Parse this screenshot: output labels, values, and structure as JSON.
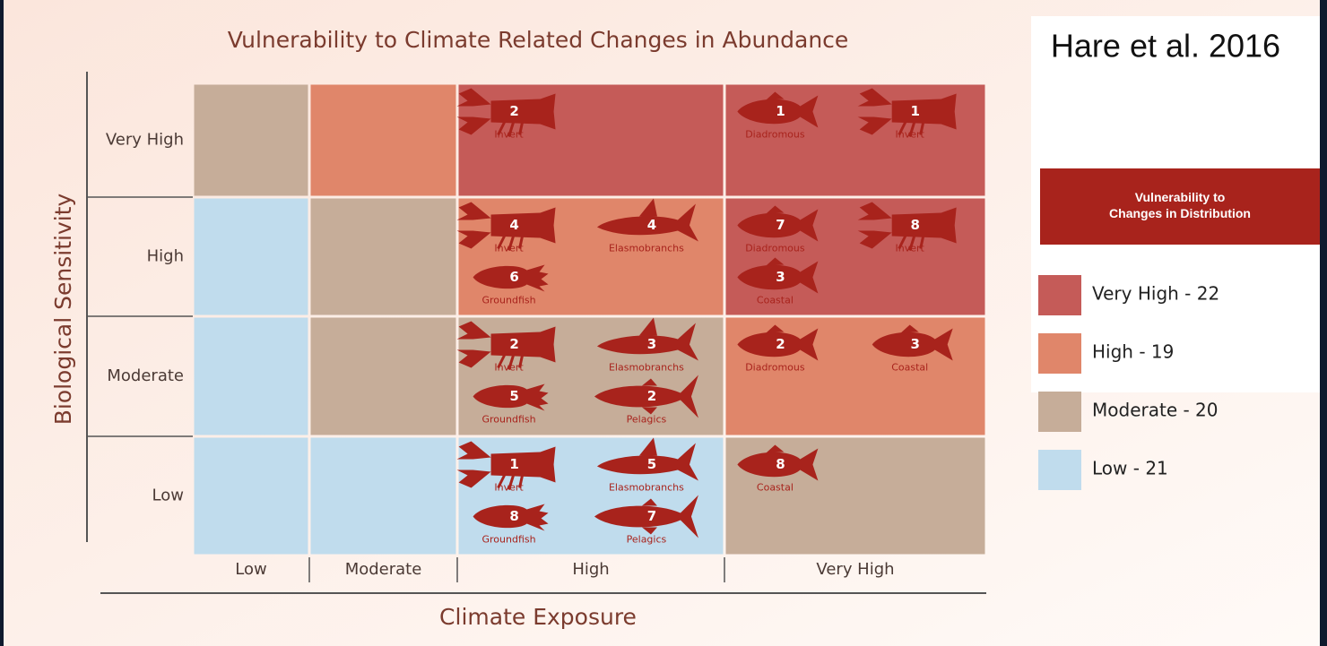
{
  "title": "Vulnerability to Climate Related Changes in Abundance",
  "citation": "Hare et al. 2016",
  "y_axis": {
    "label": "Biological Sensitivity",
    "levels": [
      "Very High",
      "High",
      "Moderate",
      "Low"
    ]
  },
  "x_axis": {
    "label": "Climate Exposure",
    "levels": [
      "Low",
      "Moderate",
      "High",
      "Very High"
    ]
  },
  "legend": {
    "title": "Vulnerability to Changes in Distribution",
    "color": "#a8231c",
    "items": [
      {
        "label": "Very High - 22",
        "color": "#c55b58"
      },
      {
        "label": "High - 19",
        "color": "#e0866a"
      },
      {
        "label": "Moderate - 20",
        "color": "#c6ad99"
      },
      {
        "label": "Low - 21",
        "color": "#c0dced"
      }
    ]
  },
  "icon_color": "#a8231c",
  "grid": [
    {
      "cells": [
        {
          "color": "#c6ad99",
          "groups": []
        },
        {
          "color": "#e0866a",
          "groups": []
        },
        {
          "color": "#c55b58",
          "groups": [
            {
              "icon": "lobster",
              "count": "2",
              "label": "Invert"
            }
          ]
        },
        {
          "color": "#c55b58",
          "groups": [
            {
              "icon": "fish",
              "count": "1",
              "label": "Diadromous"
            },
            {
              "icon": "lobster",
              "count": "1",
              "label": "Invert"
            }
          ]
        }
      ]
    },
    {
      "cells": [
        {
          "color": "#c0dced",
          "groups": []
        },
        {
          "color": "#c6ad99",
          "groups": []
        },
        {
          "color": "#e0866a",
          "groups": [
            {
              "icon": "lobster",
              "count": "4",
              "label": "Invert"
            },
            {
              "icon": "shark",
              "count": "4",
              "label": "Elasmobranchs"
            },
            {
              "icon": "groundfish",
              "count": "6",
              "label": "Groundfish"
            }
          ]
        },
        {
          "color": "#c55b58",
          "groups": [
            {
              "icon": "fish",
              "count": "7",
              "label": "Diadromous"
            },
            {
              "icon": "lobster",
              "count": "8",
              "label": "Invert"
            },
            {
              "icon": "fish",
              "count": "3",
              "label": "Coastal"
            }
          ]
        }
      ]
    },
    {
      "cells": [
        {
          "color": "#c0dced",
          "groups": []
        },
        {
          "color": "#c6ad99",
          "groups": []
        },
        {
          "color": "#c6ad99",
          "groups": [
            {
              "icon": "lobster",
              "count": "2",
              "label": "Invert"
            },
            {
              "icon": "shark",
              "count": "3",
              "label": "Elasmobranchs"
            },
            {
              "icon": "groundfish",
              "count": "5",
              "label": "Groundfish"
            },
            {
              "icon": "tuna",
              "count": "2",
              "label": "Pelagics"
            }
          ]
        },
        {
          "color": "#e0866a",
          "groups": [
            {
              "icon": "fish",
              "count": "2",
              "label": "Diadromous"
            },
            {
              "icon": "fish",
              "count": "3",
              "label": "Coastal"
            }
          ]
        }
      ]
    },
    {
      "cells": [
        {
          "color": "#c0dced",
          "groups": []
        },
        {
          "color": "#c0dced",
          "groups": []
        },
        {
          "color": "#c0dced",
          "groups": [
            {
              "icon": "lobster",
              "count": "1",
              "label": "Invert"
            },
            {
              "icon": "shark",
              "count": "5",
              "label": "Elasmobranchs"
            },
            {
              "icon": "groundfish",
              "count": "8",
              "label": "Groundfish"
            },
            {
              "icon": "tuna",
              "count": "7",
              "label": "Pelagics"
            }
          ]
        },
        {
          "color": "#c6ad99",
          "groups": [
            {
              "icon": "fish",
              "count": "8",
              "label": "Coastal"
            }
          ]
        }
      ]
    }
  ]
}
